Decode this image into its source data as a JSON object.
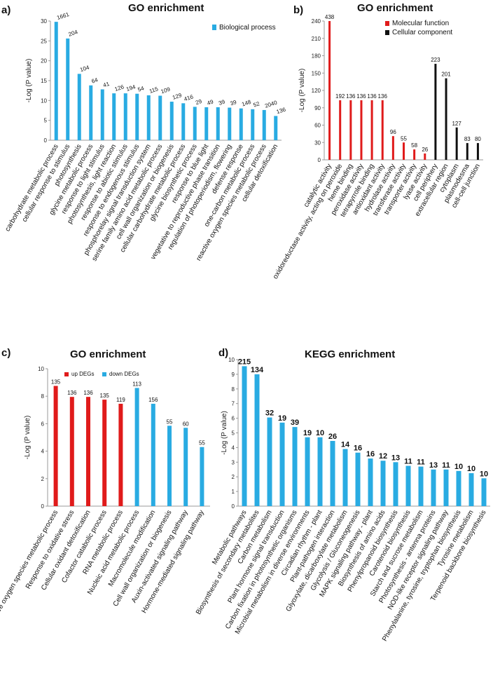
{
  "colors": {
    "blue": "#29abe2",
    "red": "#e01b1b",
    "black": "#111111"
  },
  "chart_data": [
    {
      "panel": "a)",
      "type": "bar",
      "title": "GO enrichment",
      "ylabel": "-Log (P value)",
      "ylim": [
        0,
        30
      ],
      "yticks": [
        0,
        5,
        10,
        15,
        20,
        25,
        30
      ],
      "legend": [
        {
          "label": "Biological process",
          "color": "blue"
        }
      ],
      "categories": [
        "carbohydrate metabolic process",
        "cellular response to stimulus",
        "photosynthesis",
        "glycine metabolic process",
        "response to light stimulus",
        "photosynthesis, light reaction",
        "response to abiotic stimulus",
        "response to endogenous stimulus",
        "phosphorelay signal transduction system",
        "serine family amino acid metabolic process",
        "cell wall organization or biogenesis",
        "cellular carbohydrate metabolic process",
        "glycine biosynthetic process",
        "response to blue light",
        "vegetative to reproductive phase transition",
        "regulation of photoperiodism, flowering",
        "defense response",
        "one-carbon metabolic process",
        "reactive oxygen species metabolic process",
        "cellular detoxification"
      ],
      "values": [
        29.8,
        25.6,
        16.7,
        13.8,
        12.8,
        11.8,
        11.8,
        11.7,
        11.3,
        11.2,
        9.7,
        9.3,
        8.4,
        8.3,
        8.3,
        8.2,
        8.0,
        7.8,
        7.6,
        6.1
      ],
      "labels": [
        "1661",
        "204",
        "104",
        "64",
        "41",
        "126",
        "194",
        "54",
        "115",
        "109",
        "129",
        "416",
        "29",
        "49",
        "39",
        "39",
        "148",
        "52",
        "2040",
        "136"
      ],
      "colorKeys": [
        "blue",
        "blue",
        "blue",
        "blue",
        "blue",
        "blue",
        "blue",
        "blue",
        "blue",
        "blue",
        "blue",
        "blue",
        "blue",
        "blue",
        "blue",
        "blue",
        "blue",
        "blue",
        "blue",
        "blue"
      ]
    },
    {
      "panel": "b)",
      "type": "bar",
      "title": "GO enrichment",
      "ylabel": "-Log (P value)",
      "ylim": [
        0,
        240
      ],
      "yticks": [
        0,
        30,
        60,
        90,
        120,
        150,
        180,
        210,
        240
      ],
      "legend": [
        {
          "label": "Molecular function",
          "color": "red"
        },
        {
          "label": "Cellular component",
          "color": "black"
        }
      ],
      "categories": [
        "catalytic activity",
        "oxidoreductase activity, acting on peroxide",
        "heme binding",
        "peroxidase activity",
        "tetrapyrrole binding",
        "antioxidant activity",
        "hydrolase activity",
        "transferase activity",
        "transporter activity",
        "lyase activity",
        "cell periphery",
        "extracellular region",
        "cytoplasm",
        "plasmodesma",
        "cell-cell junction"
      ],
      "values": [
        240,
        103,
        103,
        103,
        103,
        103,
        41,
        30,
        18,
        11,
        166,
        141,
        56,
        29,
        29
      ],
      "labels": [
        "438",
        "192",
        "136",
        "136",
        "136",
        "136",
        "96",
        "55",
        "58",
        "26",
        "223",
        "201",
        "127",
        "83",
        "80"
      ],
      "colorKeys": [
        "red",
        "red",
        "red",
        "red",
        "red",
        "red",
        "red",
        "red",
        "red",
        "red",
        "black",
        "black",
        "black",
        "black",
        "black"
      ]
    },
    {
      "panel": "c)",
      "type": "bar",
      "title": "GO enrichment",
      "ylabel": "-Log (P value)",
      "ylim": [
        0,
        10
      ],
      "yticks": [
        0,
        2,
        4,
        6,
        8,
        10
      ],
      "legend": [
        {
          "label": "up DEGs",
          "color": "red"
        },
        {
          "label": "down DEGs",
          "color": "blue"
        }
      ],
      "categories": [
        "Reactive oxygen species metabolic process",
        "Response to oxidative stress",
        "Cellular oxidant detoxification",
        "Cofactor catabolic process",
        "RNA metabolic process",
        "Nucleic acid metabolic process",
        "Macromolecule modification",
        "Cell wall organization or biogenesis",
        "Auxin-activated signaling pathway",
        "Hormone-mediated signaling pathway"
      ],
      "values": [
        8.75,
        7.95,
        7.95,
        7.75,
        7.45,
        8.6,
        7.45,
        5.85,
        5.7,
        4.3
      ],
      "labels": [
        "135",
        "136",
        "136",
        "135",
        "119",
        "113",
        "156",
        "55",
        "60",
        "55"
      ],
      "colorKeys": [
        "red",
        "red",
        "red",
        "red",
        "red",
        "blue",
        "blue",
        "blue",
        "blue",
        "blue"
      ]
    },
    {
      "panel": "d)",
      "type": "bar",
      "title": "KEGG enrichment",
      "ylabel": "-Log (P value)",
      "ylim": [
        0,
        10
      ],
      "yticks": [
        0,
        1,
        2,
        3,
        4,
        5,
        6,
        7,
        8,
        9,
        10
      ],
      "legend": [],
      "categories": [
        "Metabolic pathways",
        "Biosynthesis of secondary metabolites",
        "Carbon metabolism",
        "Plant hormone signal transduction",
        "Carbon fixation in photosynthetic organisms",
        "Microbial metabolism in diverse environments",
        "Circadian rhythm - plant",
        "Plant-pathogen interaction",
        "Glyoxylate, dicarboxylate metabolism",
        "Glycolysis / Gluconeogenesis",
        "MAPK signaling pathway - plant",
        "Biosynthesis of amino acids",
        "Phenylpropanoid biosynthesis",
        "Carotenoid biosynthesis",
        "Starch and sucrose metabolism",
        "Photosynthesis - antenna proteins",
        "NOD-like receptor signaling pathway",
        "Phenylalanine, tyrosine, tryptophan biosynthesis",
        "Tyrosine metabolism",
        "Terpenoid backbone biosynthesis"
      ],
      "values": [
        9.55,
        9.0,
        6.05,
        5.7,
        5.4,
        4.7,
        4.7,
        4.45,
        3.9,
        3.65,
        3.25,
        3.1,
        3.0,
        2.75,
        2.7,
        2.5,
        2.5,
        2.4,
        2.25,
        1.9
      ],
      "labels": [
        "215",
        "134",
        "32",
        "19",
        "39",
        "19",
        "10",
        "26",
        "14",
        "16",
        "16",
        "12",
        "13",
        "11",
        "11",
        "13",
        "11",
        "10",
        "10",
        "10"
      ],
      "colorKeys": [
        "blue",
        "blue",
        "blue",
        "blue",
        "blue",
        "blue",
        "blue",
        "blue",
        "blue",
        "blue",
        "blue",
        "blue",
        "blue",
        "blue",
        "blue",
        "blue",
        "blue",
        "blue",
        "blue",
        "blue"
      ]
    }
  ]
}
